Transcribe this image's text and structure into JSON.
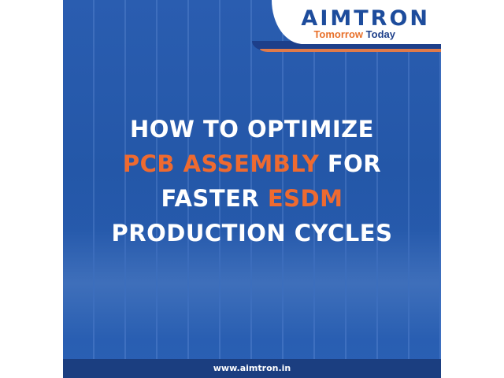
{
  "brand": {
    "name": "AIMTRON",
    "tagline_part1": "Tomorrow",
    "tagline_part2": "Today"
  },
  "headline": {
    "line1": "HOW TO OPTIMIZE",
    "line2_highlight": "PCB ASSEMBLY",
    "line2_rest": " FOR",
    "line3_plain": "FASTER ",
    "line3_highlight": "ESDM",
    "line4": "PRODUCTION CYCLES"
  },
  "footer": {
    "url": "www.aimtron.in"
  },
  "colors": {
    "background": "#2457a8",
    "accent": "#ee6a30",
    "navy": "#1b3e80",
    "text": "#ffffff"
  }
}
